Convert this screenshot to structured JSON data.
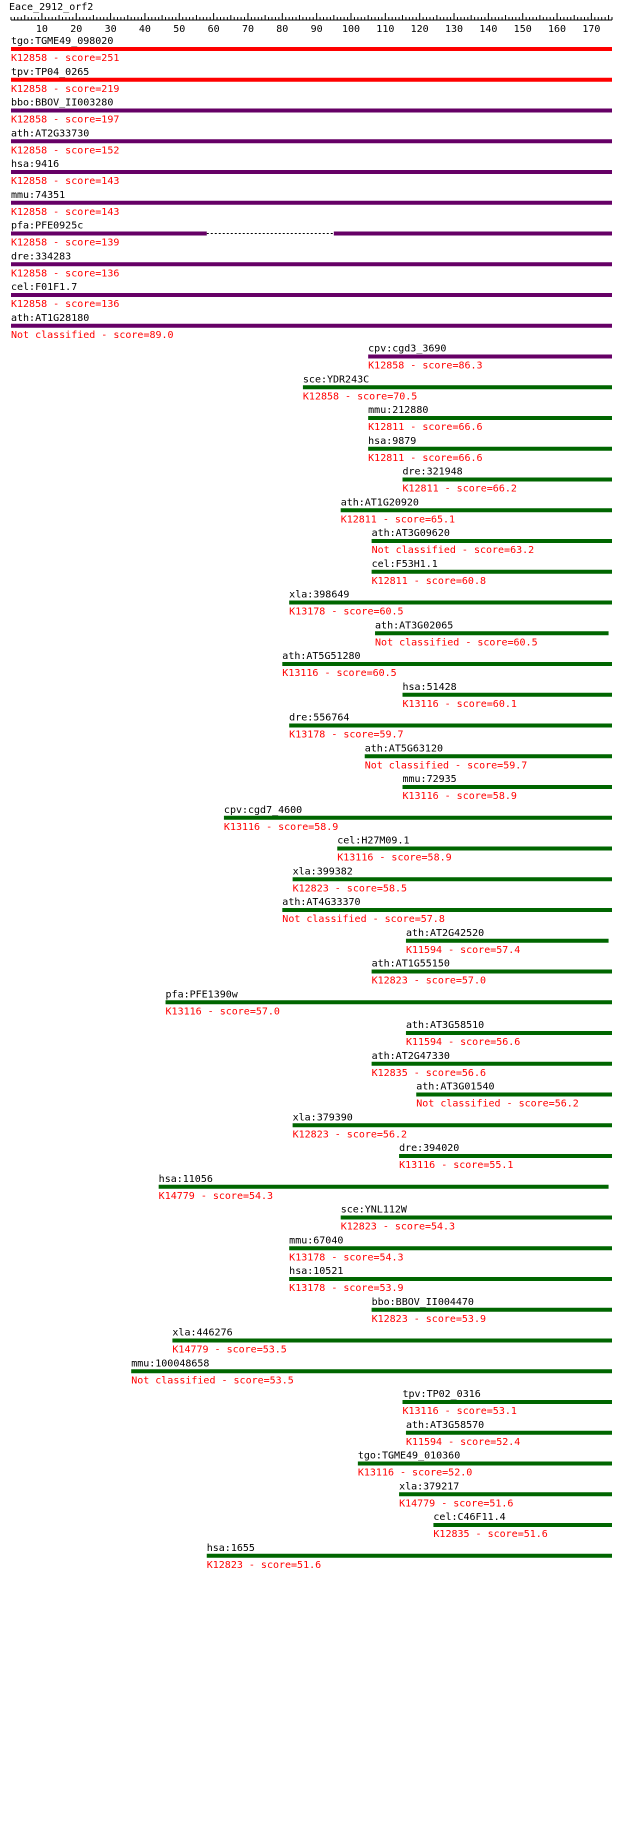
{
  "chart_data": {
    "type": "alignment",
    "title": "Eace_2912_orf2",
    "query_length": 176,
    "xlim": [
      1,
      176
    ],
    "ticks": [
      10,
      20,
      30,
      40,
      50,
      60,
      70,
      80,
      90,
      100,
      110,
      120,
      130,
      140,
      150,
      160,
      170
    ],
    "colors": {
      "red": "#ff0000",
      "purple": "#660066",
      "green": "#006600",
      "hit_text": "#ff0000",
      "label_text": "#000000"
    },
    "hits": [
      {
        "gene": "tgo:TGME49_098020",
        "annotation": "K12858 - score=251",
        "start": 1,
        "end": 176,
        "color": "red",
        "segments": [
          [
            1,
            176
          ]
        ]
      },
      {
        "gene": "tpv:TP04_0265",
        "annotation": "K12858 - score=219",
        "start": 1,
        "end": 176,
        "color": "red",
        "segments": [
          [
            1,
            176
          ]
        ]
      },
      {
        "gene": "bbo:BBOV_II003280",
        "annotation": "K12858 - score=197",
        "start": 1,
        "end": 176,
        "color": "purple",
        "segments": [
          [
            1,
            176
          ]
        ]
      },
      {
        "gene": "ath:AT2G33730",
        "annotation": "K12858 - score=152",
        "start": 1,
        "end": 176,
        "color": "purple",
        "segments": [
          [
            1,
            176
          ]
        ]
      },
      {
        "gene": "hsa:9416",
        "annotation": "K12858 - score=143",
        "start": 1,
        "end": 176,
        "color": "purple",
        "segments": [
          [
            1,
            176
          ]
        ]
      },
      {
        "gene": "mmu:74351",
        "annotation": "K12858 - score=143",
        "start": 1,
        "end": 176,
        "color": "purple",
        "segments": [
          [
            1,
            176
          ]
        ]
      },
      {
        "gene": "pfa:PFE0925c",
        "annotation": "K12858 - score=139",
        "start": 1,
        "end": 176,
        "color": "purple",
        "segments": [
          [
            1,
            58
          ],
          [
            95,
            176
          ]
        ]
      },
      {
        "gene": "dre:334283",
        "annotation": "K12858 - score=136",
        "start": 1,
        "end": 176,
        "color": "purple",
        "segments": [
          [
            1,
            176
          ]
        ]
      },
      {
        "gene": "cel:F01F1.7",
        "annotation": "K12858 - score=136",
        "start": 1,
        "end": 176,
        "color": "purple",
        "segments": [
          [
            1,
            176
          ]
        ]
      },
      {
        "gene": "ath:AT1G28180",
        "annotation": "Not classified - score=89.0",
        "start": 1,
        "end": 176,
        "color": "purple",
        "segments": [
          [
            1,
            176
          ]
        ]
      },
      {
        "gene": "cpv:cgd3_3690",
        "annotation": "K12858 - score=86.3",
        "start": 105,
        "end": 176,
        "color": "purple",
        "segments": [
          [
            105,
            176
          ]
        ]
      },
      {
        "gene": "sce:YDR243C",
        "annotation": "K12858 - score=70.5",
        "start": 86,
        "end": 176,
        "color": "green",
        "segments": [
          [
            86,
            176
          ]
        ]
      },
      {
        "gene": "mmu:212880",
        "annotation": "K12811 - score=66.6",
        "start": 105,
        "end": 176,
        "color": "green",
        "segments": [
          [
            105,
            176
          ]
        ]
      },
      {
        "gene": "hsa:9879",
        "annotation": "K12811 - score=66.6",
        "start": 105,
        "end": 176,
        "color": "green",
        "segments": [
          [
            105,
            176
          ]
        ]
      },
      {
        "gene": "dre:321948",
        "annotation": "K12811 - score=66.2",
        "start": 115,
        "end": 176,
        "color": "green",
        "segments": [
          [
            115,
            176
          ]
        ]
      },
      {
        "gene": "ath:AT1G20920",
        "annotation": "K12811 - score=65.1",
        "start": 97,
        "end": 176,
        "color": "green",
        "segments": [
          [
            97,
            176
          ]
        ]
      },
      {
        "gene": "ath:AT3G09620",
        "annotation": "Not classified - score=63.2",
        "start": 106,
        "end": 176,
        "color": "green",
        "segments": [
          [
            106,
            176
          ]
        ]
      },
      {
        "gene": "cel:F53H1.1",
        "annotation": "K12811 - score=60.8",
        "start": 106,
        "end": 176,
        "color": "green",
        "segments": [
          [
            106,
            176
          ]
        ]
      },
      {
        "gene": "xla:398649",
        "annotation": "K13178 - score=60.5",
        "start": 82,
        "end": 176,
        "color": "green",
        "segments": [
          [
            82,
            176
          ]
        ]
      },
      {
        "gene": "ath:AT3G02065",
        "annotation": "Not classified - score=60.5",
        "start": 107,
        "end": 175,
        "color": "green",
        "segments": [
          [
            107,
            175
          ]
        ]
      },
      {
        "gene": "ath:AT5G51280",
        "annotation": "K13116 - score=60.5",
        "start": 80,
        "end": 176,
        "color": "green",
        "segments": [
          [
            80,
            176
          ]
        ]
      },
      {
        "gene": "hsa:51428",
        "annotation": "K13116 - score=60.1",
        "start": 115,
        "end": 176,
        "color": "green",
        "segments": [
          [
            115,
            176
          ]
        ]
      },
      {
        "gene": "dre:556764",
        "annotation": "K13178 - score=59.7",
        "start": 82,
        "end": 176,
        "color": "green",
        "segments": [
          [
            82,
            176
          ]
        ]
      },
      {
        "gene": "ath:AT5G63120",
        "annotation": "Not classified - score=59.7",
        "start": 104,
        "end": 176,
        "color": "green",
        "segments": [
          [
            104,
            176
          ]
        ]
      },
      {
        "gene": "mmu:72935",
        "annotation": "K13116 - score=58.9",
        "start": 115,
        "end": 176,
        "color": "green",
        "segments": [
          [
            115,
            176
          ]
        ]
      },
      {
        "gene": "cpv:cgd7_4600",
        "annotation": "K13116 - score=58.9",
        "start": 63,
        "end": 176,
        "color": "green",
        "segments": [
          [
            63,
            176
          ]
        ]
      },
      {
        "gene": "cel:H27M09.1",
        "annotation": "K13116 - score=58.9",
        "start": 96,
        "end": 176,
        "color": "green",
        "segments": [
          [
            96,
            176
          ]
        ]
      },
      {
        "gene": "xla:399382",
        "annotation": "K12823 - score=58.5",
        "start": 83,
        "end": 176,
        "color": "green",
        "segments": [
          [
            83,
            176
          ]
        ]
      },
      {
        "gene": "ath:AT4G33370",
        "annotation": "Not classified - score=57.8",
        "start": 80,
        "end": 176,
        "color": "green",
        "segments": [
          [
            80,
            176
          ]
        ]
      },
      {
        "gene": "ath:AT2G42520",
        "annotation": "K11594 - score=57.4",
        "start": 116,
        "end": 175,
        "color": "green",
        "segments": [
          [
            116,
            175
          ]
        ]
      },
      {
        "gene": "ath:AT1G55150",
        "annotation": "K12823 - score=57.0",
        "start": 106,
        "end": 176,
        "color": "green",
        "segments": [
          [
            106,
            176
          ]
        ]
      },
      {
        "gene": "pfa:PFE1390w",
        "annotation": "K13116 - score=57.0",
        "start": 46,
        "end": 176,
        "color": "green",
        "segments": [
          [
            46,
            176
          ]
        ]
      },
      {
        "gene": "ath:AT3G58510",
        "annotation": "K11594 - score=56.6",
        "start": 116,
        "end": 176,
        "color": "green",
        "segments": [
          [
            116,
            176
          ]
        ]
      },
      {
        "gene": "ath:AT2G47330",
        "annotation": "K12835 - score=56.6",
        "start": 106,
        "end": 176,
        "color": "green",
        "segments": [
          [
            106,
            176
          ]
        ]
      },
      {
        "gene": "ath:AT3G01540",
        "annotation": "Not classified - score=56.2",
        "start": 119,
        "end": 176,
        "color": "green",
        "segments": [
          [
            119,
            176
          ]
        ]
      },
      {
        "gene": "xla:379390",
        "annotation": "K12823 - score=56.2",
        "start": 83,
        "end": 176,
        "color": "green",
        "segments": [
          [
            83,
            176
          ]
        ]
      },
      {
        "gene": "dre:394020",
        "annotation": "K13116 - score=55.1",
        "start": 114,
        "end": 176,
        "color": "green",
        "segments": [
          [
            114,
            176
          ]
        ]
      },
      {
        "gene": "hsa:11056",
        "annotation": "K14779 - score=54.3",
        "start": 44,
        "end": 175,
        "color": "green",
        "segments": [
          [
            44,
            175
          ]
        ]
      },
      {
        "gene": "sce:YNL112W",
        "annotation": "K12823 - score=54.3",
        "start": 97,
        "end": 176,
        "color": "green",
        "segments": [
          [
            97,
            176
          ]
        ]
      },
      {
        "gene": "mmu:67040",
        "annotation": "K13178 - score=54.3",
        "start": 82,
        "end": 176,
        "color": "green",
        "segments": [
          [
            82,
            176
          ]
        ]
      },
      {
        "gene": "hsa:10521",
        "annotation": "K13178 - score=53.9",
        "start": 82,
        "end": 176,
        "color": "green",
        "segments": [
          [
            82,
            176
          ]
        ]
      },
      {
        "gene": "bbo:BBOV_II004470",
        "annotation": "K12823 - score=53.9",
        "start": 106,
        "end": 176,
        "color": "green",
        "segments": [
          [
            106,
            176
          ]
        ]
      },
      {
        "gene": "xla:446276",
        "annotation": "K14779 - score=53.5",
        "start": 48,
        "end": 176,
        "color": "green",
        "segments": [
          [
            48,
            176
          ]
        ]
      },
      {
        "gene": "mmu:100048658",
        "annotation": "Not classified - score=53.5",
        "start": 36,
        "end": 176,
        "color": "green",
        "segments": [
          [
            36,
            176
          ]
        ]
      },
      {
        "gene": "tpv:TP02_0316",
        "annotation": "K13116 - score=53.1",
        "start": 115,
        "end": 176,
        "color": "green",
        "segments": [
          [
            115,
            176
          ]
        ]
      },
      {
        "gene": "ath:AT3G58570",
        "annotation": "K11594 - score=52.4",
        "start": 116,
        "end": 176,
        "color": "green",
        "segments": [
          [
            116,
            176
          ]
        ]
      },
      {
        "gene": "tgo:TGME49_010360",
        "annotation": "K13116 - score=52.0",
        "start": 102,
        "end": 176,
        "color": "green",
        "segments": [
          [
            102,
            176
          ]
        ]
      },
      {
        "gene": "xla:379217",
        "annotation": "K14779 - score=51.6",
        "start": 114,
        "end": 176,
        "color": "green",
        "segments": [
          [
            114,
            176
          ]
        ]
      },
      {
        "gene": "cel:C46F11.4",
        "annotation": "K12835 - score=51.6",
        "start": 124,
        "end": 176,
        "color": "green",
        "segments": [
          [
            124,
            176
          ]
        ]
      },
      {
        "gene": "hsa:1655",
        "annotation": "K12823 - score=51.6",
        "start": 58,
        "end": 176,
        "color": "green",
        "segments": [
          [
            58,
            176
          ]
        ]
      }
    ]
  }
}
